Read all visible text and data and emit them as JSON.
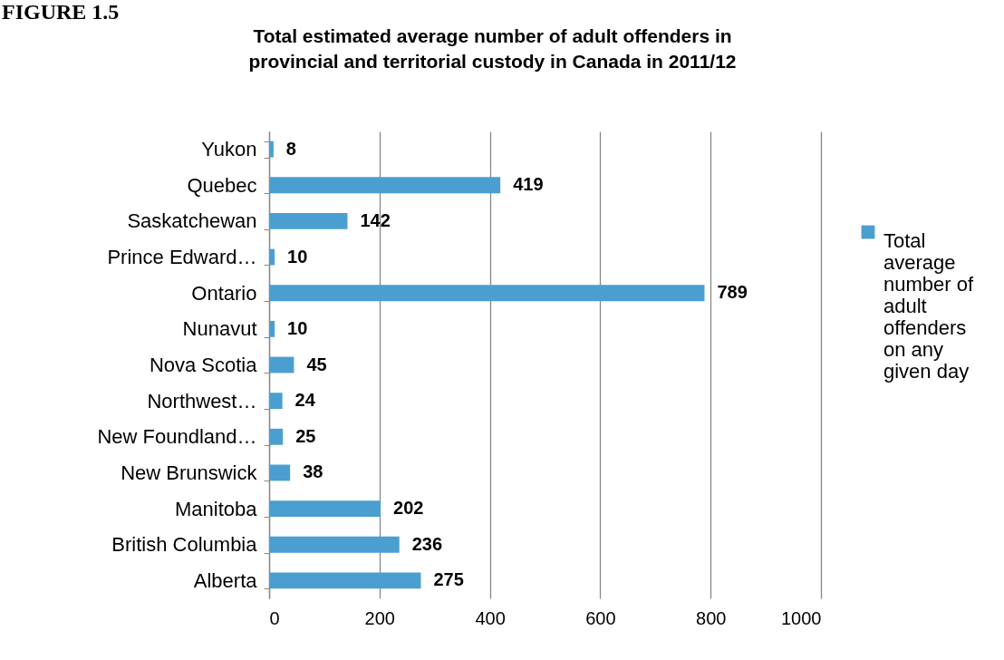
{
  "chart_data": {
    "type": "bar",
    "orientation": "horizontal",
    "title": "Total estimated average number of adult offenders in provincial and territorial custody in Canada in 2011/12",
    "annotations": [
      "FIGURE 1.5"
    ],
    "categories": [
      "Yukon",
      "Quebec",
      "Saskatchewan",
      "Prince Edward…",
      "Ontario",
      "Nunavut",
      "Nova Scotia",
      "Northwest…",
      "New Foundland…",
      "New Brunswick",
      "Manitoba",
      "British Columbia",
      "Alberta"
    ],
    "series": [
      {
        "name": "Total average number of adult offenders on any given day",
        "color": "#4a9fd0",
        "values": [
          8,
          419,
          142,
          10,
          789,
          10,
          45,
          24,
          25,
          38,
          202,
          236,
          275
        ]
      }
    ],
    "xlim": [
      0,
      1000
    ],
    "xticks": [
      0,
      200,
      400,
      600,
      800,
      1000
    ],
    "grid": "x",
    "legend": "right",
    "data_labels": true
  }
}
